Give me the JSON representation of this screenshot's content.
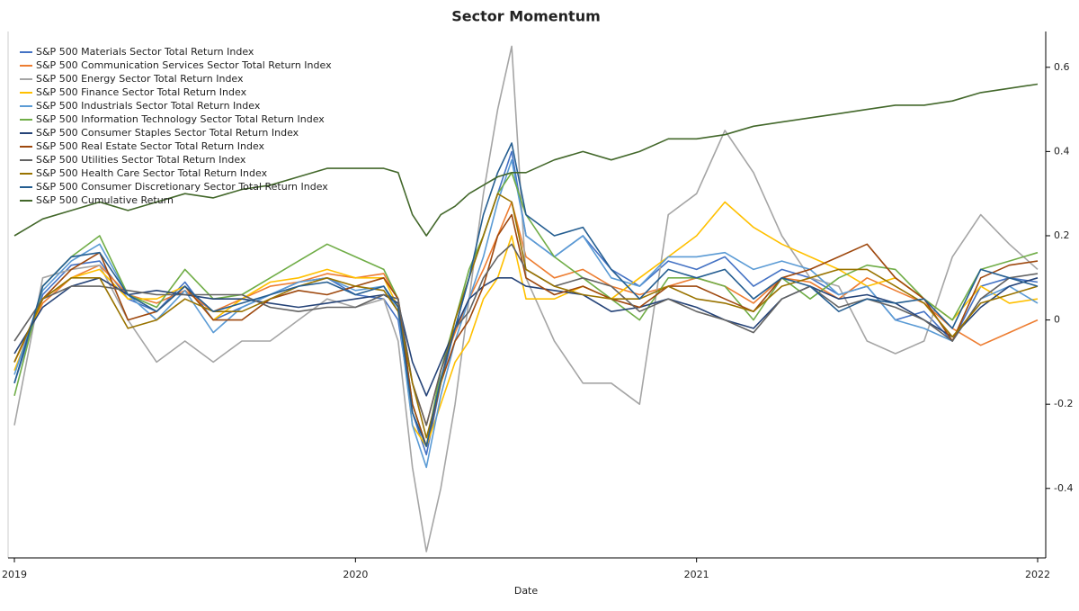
{
  "chart_data": {
    "type": "line",
    "title": "Sector Momentum",
    "x_label": "Date",
    "x": [
      2019.0,
      2019.083,
      2019.167,
      2019.25,
      2019.333,
      2019.417,
      2019.5,
      2019.583,
      2019.667,
      2019.75,
      2019.833,
      2019.917,
      2020.0,
      2020.083,
      2020.125,
      2020.167,
      2020.208,
      2020.25,
      2020.292,
      2020.333,
      2020.375,
      2020.417,
      2020.458,
      2020.5,
      2020.583,
      2020.667,
      2020.75,
      2020.833,
      2020.917,
      2021.0,
      2021.083,
      2021.167,
      2021.25,
      2021.333,
      2021.417,
      2021.5,
      2021.583,
      2021.667,
      2021.75,
      2021.833,
      2021.917,
      2022.0
    ],
    "xlim": [
      2019,
      2022
    ],
    "xticks": [
      2019,
      2020,
      2021,
      2022
    ],
    "ylim": [
      -0.565,
      0.685
    ],
    "yticks": [
      -0.4,
      -0.2,
      0,
      0.2,
      0.4,
      0.6
    ],
    "y_axis_side": "right",
    "legend_position": "upper left",
    "series": [
      {
        "name": "S&P 500 Materials Sector Total Return Index",
        "color": "#4472c4",
        "values": [
          -0.15,
          0.06,
          0.13,
          0.14,
          0.05,
          0.02,
          0.09,
          0.0,
          0.03,
          0.06,
          0.09,
          0.1,
          0.06,
          0.05,
          0.0,
          -0.22,
          -0.32,
          -0.15,
          -0.02,
          0.1,
          0.2,
          0.3,
          0.4,
          0.2,
          0.15,
          0.2,
          0.12,
          0.08,
          0.14,
          0.12,
          0.15,
          0.08,
          0.12,
          0.1,
          0.06,
          0.08,
          0.0,
          0.02,
          -0.05,
          0.08,
          0.1,
          0.09
        ]
      },
      {
        "name": "S&P 500 Communication Services Sector Total Return Index",
        "color": "#ed7d31",
        "values": [
          -0.1,
          0.04,
          0.1,
          0.13,
          0.06,
          0.04,
          0.07,
          0.02,
          0.05,
          0.08,
          0.09,
          0.11,
          0.1,
          0.11,
          0.05,
          -0.15,
          -0.25,
          -0.12,
          -0.03,
          0.05,
          0.12,
          0.2,
          0.28,
          0.15,
          0.1,
          0.12,
          0.08,
          0.06,
          0.08,
          0.1,
          0.08,
          0.04,
          0.1,
          0.09,
          0.05,
          0.1,
          0.07,
          0.04,
          -0.02,
          -0.06,
          -0.03,
          0.0
        ]
      },
      {
        "name": "S&P 500 Energy Sector Total Return Index",
        "color": "#a5a5a5",
        "values": [
          -0.25,
          0.1,
          0.12,
          0.13,
          0.0,
          -0.1,
          -0.05,
          -0.1,
          -0.05,
          -0.05,
          0.0,
          0.05,
          0.03,
          0.05,
          -0.05,
          -0.35,
          -0.55,
          -0.4,
          -0.2,
          0.05,
          0.3,
          0.5,
          0.65,
          0.1,
          -0.05,
          -0.15,
          -0.15,
          -0.2,
          0.25,
          0.3,
          0.45,
          0.35,
          0.2,
          0.1,
          0.08,
          -0.05,
          -0.08,
          -0.05,
          0.15,
          0.25,
          0.18,
          0.12
        ]
      },
      {
        "name": "S&P 500 Finance Sector Total Return Index",
        "color": "#ffc000",
        "values": [
          -0.12,
          0.05,
          0.1,
          0.12,
          0.05,
          0.05,
          0.08,
          0.0,
          0.05,
          0.09,
          0.1,
          0.12,
          0.1,
          0.1,
          0.03,
          -0.25,
          -0.3,
          -0.2,
          -0.1,
          -0.05,
          0.05,
          0.1,
          0.2,
          0.05,
          0.05,
          0.08,
          0.05,
          0.1,
          0.15,
          0.2,
          0.28,
          0.22,
          0.18,
          0.15,
          0.12,
          0.08,
          0.1,
          0.05,
          0.0,
          0.08,
          0.04,
          0.05
        ]
      },
      {
        "name": "S&P 500 Industrials Sector Total Return Index",
        "color": "#5b9bd5",
        "values": [
          -0.13,
          0.07,
          0.14,
          0.18,
          0.06,
          0.0,
          0.07,
          -0.03,
          0.03,
          0.06,
          0.09,
          0.1,
          0.07,
          0.08,
          0.02,
          -0.25,
          -0.35,
          -0.18,
          -0.05,
          0.05,
          0.15,
          0.28,
          0.38,
          0.2,
          0.15,
          0.2,
          0.1,
          0.08,
          0.15,
          0.15,
          0.16,
          0.12,
          0.14,
          0.12,
          0.06,
          0.08,
          0.0,
          -0.02,
          -0.05,
          0.05,
          0.08,
          0.04
        ]
      },
      {
        "name": "S&P 500 Information Technology Sector Total Return Index",
        "color": "#70ad47",
        "values": [
          -0.18,
          0.08,
          0.15,
          0.2,
          0.06,
          0.03,
          0.12,
          0.05,
          0.06,
          0.1,
          0.14,
          0.18,
          0.15,
          0.12,
          0.05,
          -0.2,
          -0.3,
          -0.12,
          0.0,
          0.12,
          0.2,
          0.3,
          0.35,
          0.25,
          0.15,
          0.1,
          0.05,
          0.0,
          0.1,
          0.1,
          0.08,
          0.0,
          0.1,
          0.05,
          0.1,
          0.13,
          0.12,
          0.05,
          0.0,
          0.12,
          0.14,
          0.16
        ]
      },
      {
        "name": "S&P 500 Consumer Staples Sector Total Return Index",
        "color": "#264478",
        "values": [
          -0.08,
          0.03,
          0.08,
          0.1,
          0.06,
          0.07,
          0.06,
          0.05,
          0.05,
          0.04,
          0.03,
          0.04,
          0.05,
          0.06,
          0.04,
          -0.1,
          -0.18,
          -0.1,
          -0.02,
          0.05,
          0.08,
          0.1,
          0.1,
          0.08,
          0.07,
          0.06,
          0.02,
          0.03,
          0.05,
          0.03,
          0.0,
          -0.02,
          0.05,
          0.08,
          0.05,
          0.06,
          0.04,
          0.0,
          -0.04,
          0.03,
          0.08,
          0.1
        ]
      },
      {
        "name": "S&P 500 Real Estate Sector Total Return Index",
        "color": "#9e480e",
        "values": [
          -0.1,
          0.05,
          0.12,
          0.16,
          0.0,
          0.02,
          0.08,
          0.0,
          0.0,
          0.05,
          0.07,
          0.06,
          0.08,
          0.1,
          0.05,
          -0.2,
          -0.3,
          -0.15,
          -0.05,
          0.0,
          0.08,
          0.2,
          0.25,
          0.1,
          0.06,
          0.08,
          0.05,
          0.03,
          0.08,
          0.08,
          0.05,
          0.02,
          0.1,
          0.12,
          0.15,
          0.18,
          0.1,
          0.05,
          -0.05,
          0.1,
          0.13,
          0.14
        ]
      },
      {
        "name": "S&P 500 Utilities Sector Total Return Index",
        "color": "#636363",
        "values": [
          -0.05,
          0.05,
          0.08,
          0.08,
          0.07,
          0.06,
          0.06,
          0.06,
          0.06,
          0.03,
          0.02,
          0.03,
          0.03,
          0.06,
          0.05,
          -0.15,
          -0.25,
          -0.12,
          -0.02,
          0.02,
          0.1,
          0.15,
          0.18,
          0.12,
          0.08,
          0.1,
          0.08,
          0.02,
          0.05,
          0.02,
          0.0,
          -0.03,
          0.05,
          0.08,
          0.03,
          0.05,
          0.03,
          0.0,
          -0.05,
          0.05,
          0.1,
          0.11
        ]
      },
      {
        "name": "S&P 500 Health Care Sector Total Return Index",
        "color": "#997300",
        "values": [
          -0.1,
          0.05,
          0.1,
          0.1,
          -0.02,
          0.0,
          0.05,
          0.02,
          0.02,
          0.05,
          0.08,
          0.1,
          0.08,
          0.07,
          0.02,
          -0.15,
          -0.28,
          -0.15,
          0.0,
          0.1,
          0.2,
          0.3,
          0.28,
          0.12,
          0.08,
          0.06,
          0.05,
          0.05,
          0.08,
          0.05,
          0.04,
          0.02,
          0.08,
          0.1,
          0.12,
          0.12,
          0.08,
          0.04,
          -0.04,
          0.04,
          0.06,
          0.08
        ]
      },
      {
        "name": "S&P 500 Consumer Discretionary Sector Total Return Index",
        "color": "#255e91",
        "values": [
          -0.15,
          0.08,
          0.15,
          0.16,
          0.06,
          0.02,
          0.08,
          0.02,
          0.04,
          0.06,
          0.08,
          0.09,
          0.06,
          0.08,
          0.03,
          -0.22,
          -0.3,
          -0.14,
          -0.02,
          0.1,
          0.25,
          0.35,
          0.42,
          0.25,
          0.2,
          0.22,
          0.12,
          0.05,
          0.12,
          0.1,
          0.12,
          0.05,
          0.1,
          0.08,
          0.02,
          0.05,
          0.04,
          0.05,
          -0.02,
          0.12,
          0.1,
          0.08
        ]
      },
      {
        "name": "S&P 500 Cumulative Return",
        "color": "#43682b",
        "values": [
          0.2,
          0.24,
          0.26,
          0.28,
          0.26,
          0.28,
          0.3,
          0.29,
          0.31,
          0.32,
          0.34,
          0.36,
          0.36,
          0.36,
          0.35,
          0.25,
          0.2,
          0.25,
          0.27,
          0.3,
          0.32,
          0.34,
          0.35,
          0.35,
          0.38,
          0.4,
          0.38,
          0.4,
          0.43,
          0.43,
          0.44,
          0.46,
          0.47,
          0.48,
          0.49,
          0.5,
          0.51,
          0.51,
          0.52,
          0.54,
          0.55,
          0.56
        ]
      }
    ]
  }
}
